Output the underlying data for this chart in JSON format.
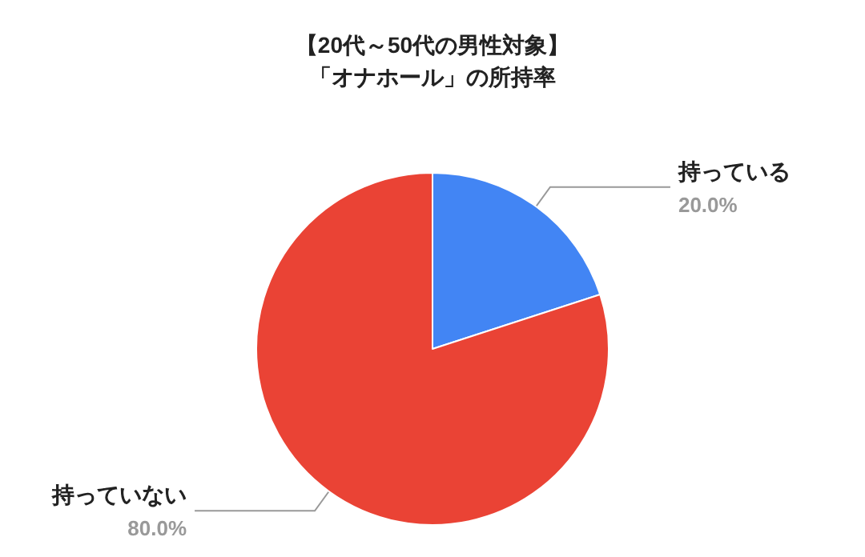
{
  "chart_data": {
    "type": "pie",
    "title": "【20代～50代の男性対象】",
    "subtitle": "「オナホール」の所持率",
    "categories": [
      "持っている",
      "持っていない"
    ],
    "values": [
      20,
      80
    ],
    "colors": [
      "#4285f4",
      "#ea4335"
    ],
    "value_labels": [
      "20.0%",
      "80.0%"
    ],
    "legend": false
  }
}
